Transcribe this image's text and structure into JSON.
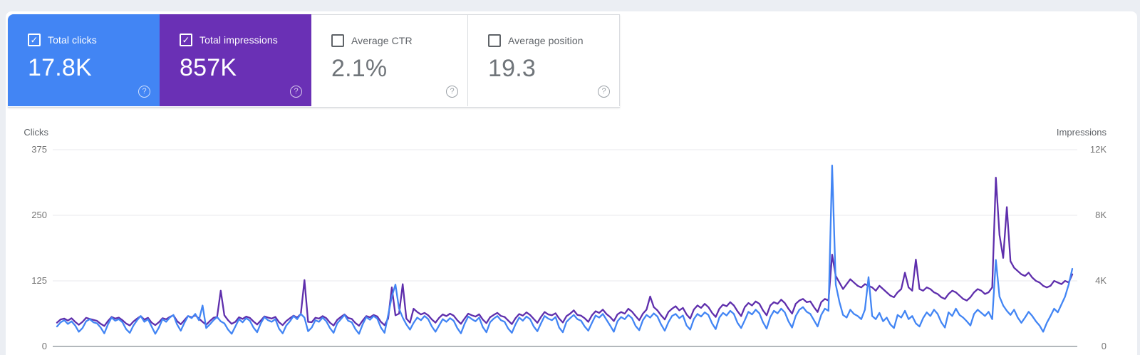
{
  "colors": {
    "clicks_blue": "#4285f4",
    "impressions_purple": "#6a30b5",
    "line_clicks": "#4285f4",
    "line_impressions": "#5e2eac",
    "page_background": "#ebeef3",
    "panel_background": "#ffffff",
    "card_border": "#dadce0"
  },
  "icons": {
    "check": "✓",
    "help": "?"
  },
  "metric_cards": [
    {
      "label": "Total clicks",
      "value": "17.8K",
      "checked": true,
      "color": "#4285f4",
      "text_color": "#ffffff",
      "label_color": "#ffffff",
      "help_color": "rgba(255,255,255,0.75)"
    },
    {
      "label": "Total impressions",
      "value": "857K",
      "checked": true,
      "color": "#6a30b5",
      "text_color": "#ffffff",
      "label_color": "#ffffff",
      "help_color": "rgba(255,255,255,0.75)"
    },
    {
      "label": "Average CTR",
      "value": "2.1%",
      "checked": false,
      "color": "#ffffff",
      "text_color": "#70757a",
      "label_color": "#5f6368",
      "help_color": "#9aa0a6"
    },
    {
      "label": "Average position",
      "value": "19.3",
      "checked": false,
      "color": "#ffffff",
      "text_color": "#70757a",
      "label_color": "#5f6368",
      "help_color": "#9aa0a6"
    }
  ],
  "chart_data": {
    "type": "line",
    "grid": true,
    "x_axis_labels_visible": false,
    "left_axis": {
      "title": "Clicks",
      "tick_labels": [
        "375",
        "250",
        "125",
        "0"
      ],
      "tick_values": [
        375,
        250,
        125,
        0
      ],
      "range": [
        0,
        375
      ]
    },
    "right_axis": {
      "title": "Impressions",
      "tick_labels": [
        "12K",
        "8K",
        "4K",
        "0"
      ],
      "tick_values": [
        12000,
        8000,
        4000,
        0
      ],
      "range": [
        0,
        12000
      ]
    },
    "series": [
      {
        "name": "Impressions",
        "axis": "right",
        "color": "#5e2eac",
        "values": [
          1450,
          1650,
          1700,
          1580,
          1720,
          1500,
          1320,
          1500,
          1750,
          1680,
          1620,
          1560,
          1380,
          1250,
          1550,
          1800,
          1700,
          1760,
          1600,
          1400,
          1280,
          1520,
          1700,
          1850,
          1640,
          1750,
          1450,
          1300,
          1480,
          1720,
          1660,
          1800,
          1900,
          1550,
          1350,
          1600,
          1850,
          1780,
          1900,
          1700,
          1500,
          1320,
          1550,
          1750,
          1800,
          3400,
          1900,
          1600,
          1380,
          1500,
          1780,
          1680,
          1820,
          1740,
          1520,
          1340,
          1580,
          1830,
          1760,
          1700,
          1800,
          1480,
          1300,
          1550,
          1720,
          1880,
          1760,
          1980,
          4050,
          1500,
          1480,
          1750,
          1700,
          1850,
          1720,
          1450,
          1280,
          1620,
          1800,
          1950,
          1740,
          1680,
          1430,
          1260,
          1580,
          1850,
          1780,
          1920,
          1830,
          1500,
          1300,
          1700,
          3600,
          1900,
          2000,
          3800,
          1700,
          1450,
          2300,
          2100,
          1950,
          2050,
          1900,
          1650,
          1450,
          1750,
          1950,
          1850,
          2000,
          1880,
          1600,
          1380,
          1700,
          2000,
          1900,
          1820,
          1960,
          1640,
          1420,
          1780,
          1920,
          2050,
          1860,
          1800,
          1580,
          1360,
          1720,
          1980,
          1880,
          2080,
          1920,
          1680,
          1440,
          1800,
          2100,
          1950,
          1900,
          2020,
          1700,
          1460,
          1850,
          2000,
          2200,
          1920,
          1880,
          1720,
          1500,
          1900,
          2150,
          2050,
          2250,
          1980,
          1800,
          1550,
          1950,
          2100,
          2000,
          2300,
          2120,
          1850,
          1600,
          2000,
          2250,
          3050,
          2400,
          2200,
          1900,
          1650,
          2100,
          2300,
          2450,
          2200,
          2350,
          1950,
          1700,
          2250,
          2500,
          2350,
          2600,
          2400,
          2050,
          1800,
          2300,
          2550,
          2450,
          2700,
          2500,
          2150,
          1850,
          2400,
          2650,
          2500,
          2750,
          2600,
          2200,
          1900,
          2500,
          2700,
          2600,
          2850,
          2650,
          2300,
          2000,
          2600,
          2800,
          2900,
          2700,
          2750,
          2400,
          2100,
          2700,
          2900,
          2800,
          5600,
          4300,
          3900,
          3500,
          3800,
          4100,
          3900,
          3700,
          3600,
          3800,
          3700,
          3600,
          3400,
          3700,
          3500,
          3300,
          3100,
          3000,
          3300,
          3500,
          4500,
          3600,
          3400,
          5300,
          3500,
          3400,
          3600,
          3500,
          3300,
          3200,
          3000,
          2900,
          3200,
          3400,
          3300,
          3100,
          2900,
          2800,
          3000,
          3300,
          3500,
          3400,
          3200,
          3300,
          3600,
          10300,
          6800,
          5400,
          8500,
          5200,
          4800,
          4600,
          4400,
          4300,
          4500,
          4200,
          4000,
          3900,
          3700,
          3600,
          3700,
          4000,
          3900,
          3800,
          4000,
          3900,
          4400
        ]
      },
      {
        "name": "Clicks",
        "axis": "left",
        "color": "#4285f4",
        "values": [
          38,
          46,
          50,
          43,
          48,
          40,
          28,
          35,
          48,
          52,
          46,
          44,
          36,
          25,
          42,
          55,
          49,
          52,
          46,
          33,
          26,
          40,
          50,
          58,
          47,
          52,
          38,
          24,
          36,
          52,
          47,
          55,
          60,
          42,
          30,
          45,
          58,
          54,
          62,
          50,
          78,
          35,
          42,
          50,
          56,
          48,
          44,
          32,
          24,
          38,
          52,
          46,
          54,
          49,
          36,
          27,
          44,
          56,
          50,
          47,
          52,
          34,
          25,
          40,
          48,
          58,
          52,
          62,
          55,
          29,
          36,
          50,
          47,
          55,
          48,
          35,
          26,
          44,
          52,
          60,
          49,
          46,
          33,
          24,
          42,
          56,
          51,
          58,
          53,
          36,
          26,
          60,
          95,
          118,
          72,
          55,
          42,
          32,
          45,
          55,
          50,
          58,
          52,
          38,
          28,
          40,
          52,
          47,
          54,
          49,
          35,
          25,
          43,
          57,
          52,
          48,
          55,
          37,
          27,
          46,
          53,
          58,
          50,
          47,
          34,
          26,
          42,
          55,
          49,
          57,
          52,
          38,
          29,
          44,
          58,
          53,
          50,
          56,
          36,
          27,
          47,
          54,
          60,
          52,
          49,
          38,
          30,
          45,
          59,
          55,
          62,
          51,
          40,
          28,
          48,
          56,
          52,
          60,
          54,
          39,
          31,
          50,
          60,
          55,
          63,
          57,
          42,
          30,
          46,
          58,
          62,
          54,
          59,
          40,
          32,
          52,
          62,
          57,
          65,
          60,
          44,
          33,
          55,
          64,
          59,
          68,
          62,
          45,
          35,
          50,
          66,
          61,
          70,
          63,
          46,
          34,
          56,
          68,
          63,
          72,
          65,
          48,
          36,
          58,
          70,
          75,
          66,
          62,
          50,
          38,
          60,
          72,
          68,
          345,
          118,
          85,
          60,
          55,
          70,
          62,
          58,
          52,
          70,
          132,
          58,
          52,
          64,
          48,
          55,
          42,
          35,
          60,
          55,
          68,
          52,
          58,
          44,
          38,
          54,
          65,
          58,
          70,
          62,
          46,
          36,
          65,
          58,
          72,
          60,
          55,
          48,
          40,
          62,
          70,
          64,
          58,
          66,
          52,
          165,
          95,
          78,
          68,
          60,
          70,
          55,
          45,
          55,
          66,
          58,
          48,
          40,
          28,
          45,
          58,
          72,
          65,
          80,
          95,
          118,
          148
        ]
      }
    ]
  }
}
